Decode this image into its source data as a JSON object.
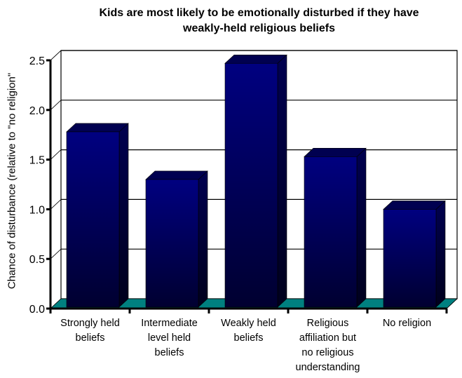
{
  "chart_data": {
    "type": "bar",
    "style": "3d-column",
    "title_lines": [
      "Kids are most likely to be emotionally disturbed if they have",
      "weakly-held religious beliefs"
    ],
    "title": "Kids are most likely to be emotionally disturbed if they have weakly-held religious beliefs",
    "xlabel": "",
    "ylabel": "Chance of disturbance (relative to \"no religion\"",
    "ylim": [
      0,
      2.5
    ],
    "yticks": [
      0.0,
      0.5,
      1.0,
      1.5,
      2.0,
      2.5
    ],
    "ytick_labels": [
      "0.0",
      "0.5",
      "1.0",
      "1.5",
      "2.0",
      "2.5"
    ],
    "grid": true,
    "legend": "none",
    "categories": [
      [
        "Strongly held",
        "beliefs"
      ],
      [
        "Intermediate",
        "level held",
        "beliefs"
      ],
      [
        "Weakly held",
        "beliefs"
      ],
      [
        "Religious",
        "affiliation but",
        "no religious",
        "understanding"
      ],
      [
        "No religion"
      ]
    ],
    "category_names": [
      "Strongly held beliefs",
      "Intermediate level held beliefs",
      "Weakly held beliefs",
      "Religious affiliation but no religious understanding",
      "No religion"
    ],
    "values": [
      1.78,
      1.3,
      2.47,
      1.53,
      1.0
    ],
    "colors": {
      "bar_front_top": "#000080",
      "bar_front_bottom": "#000030",
      "bar_side": "#000040",
      "bar_top": "#000050",
      "floor": "#008080",
      "grid": "#000000",
      "axis": "#000000"
    }
  }
}
